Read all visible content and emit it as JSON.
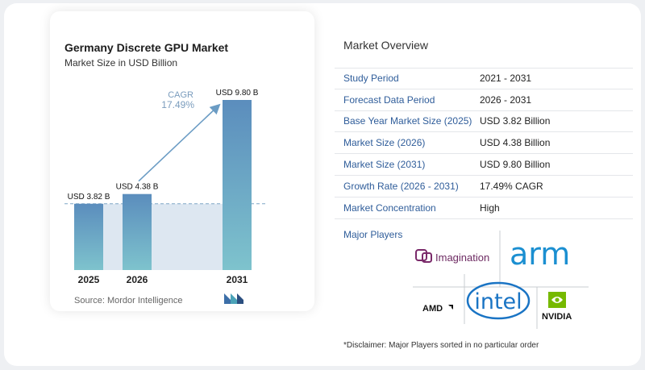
{
  "chart": {
    "title": "Germany Discrete GPU Market",
    "subtitle": "Market Size in USD Billion",
    "source": "Source: Mordor Intelligence",
    "cagr_label": "CAGR",
    "cagr_value": "17.49%"
  },
  "chart_data": {
    "type": "bar",
    "categories": [
      "2025",
      "2026",
      "2031"
    ],
    "values": [
      3.82,
      4.38,
      9.8
    ],
    "data_labels": [
      "USD 3.82 B",
      "USD 4.38 B",
      "USD 9.80 B"
    ],
    "ylim": [
      0,
      9.8
    ],
    "reference_line": 3.82,
    "annotation": "CAGR 17.49%",
    "colors": {
      "bar_top": "#5b8dbd",
      "bar_bottom": "#7ec3cd",
      "band": "#dde7f1",
      "arrow": "#6b9cc4",
      "dash": "#7fa6c6"
    }
  },
  "overview": {
    "title": "Market Overview",
    "rows": [
      {
        "label": "Study Period",
        "value": "2021 - 2031"
      },
      {
        "label": "Forecast Data Period",
        "value": "2026 - 2031"
      },
      {
        "label": "Base Year Market Size (2025)",
        "value": "USD 3.82 Billion"
      },
      {
        "label": "Market Size (2026)",
        "value": "USD 4.38 Billion"
      },
      {
        "label": "Market Size (2031)",
        "value": "USD 9.80 Billion"
      },
      {
        "label": "Growth Rate (2026 - 2031)",
        "value": "17.49% CAGR"
      },
      {
        "label": "Market Concentration",
        "value": "High"
      }
    ]
  },
  "players": {
    "title": "Major Players",
    "logos": {
      "imagination": "Imagination",
      "arm": "arm",
      "amd": "AMD",
      "intel": "intel",
      "nvidia": "NVIDIA"
    }
  },
  "disclaimer": "*Disclaimer: Major Players sorted in no particular order"
}
